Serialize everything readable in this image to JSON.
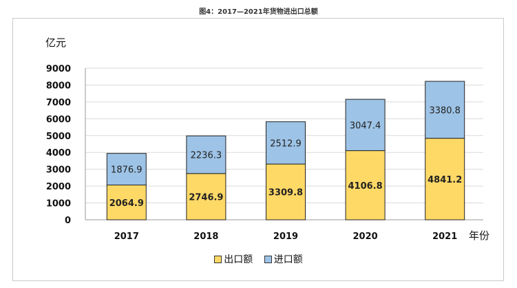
{
  "chart_data": {
    "type": "bar",
    "stacked": true,
    "title": "图4：2017—2021年货物进出口总额",
    "ylabel": "亿元",
    "xlabel": "年份",
    "ylim": [
      0,
      9000
    ],
    "yticks": [
      0,
      1000,
      2000,
      3000,
      4000,
      5000,
      6000,
      7000,
      8000,
      9000
    ],
    "grid": true,
    "legend_position": "bottom",
    "categories": [
      "2017",
      "2018",
      "2019",
      "2020",
      "2021"
    ],
    "series": [
      {
        "name": "出口额",
        "color": "#ffd966",
        "values": [
          2064.9,
          2746.9,
          3309.8,
          4106.8,
          4841.2
        ],
        "labels": [
          "2064.9",
          "2746.9",
          "3309.8",
          "4106.8",
          "4841.2"
        ]
      },
      {
        "name": "进口额",
        "color": "#9dc3e6",
        "values": [
          1876.9,
          2236.3,
          2512.9,
          3047.4,
          3380.8
        ],
        "labels": [
          "1876.9",
          "2236.3",
          "2512.9",
          "3047.4",
          "3380.8"
        ]
      }
    ]
  }
}
